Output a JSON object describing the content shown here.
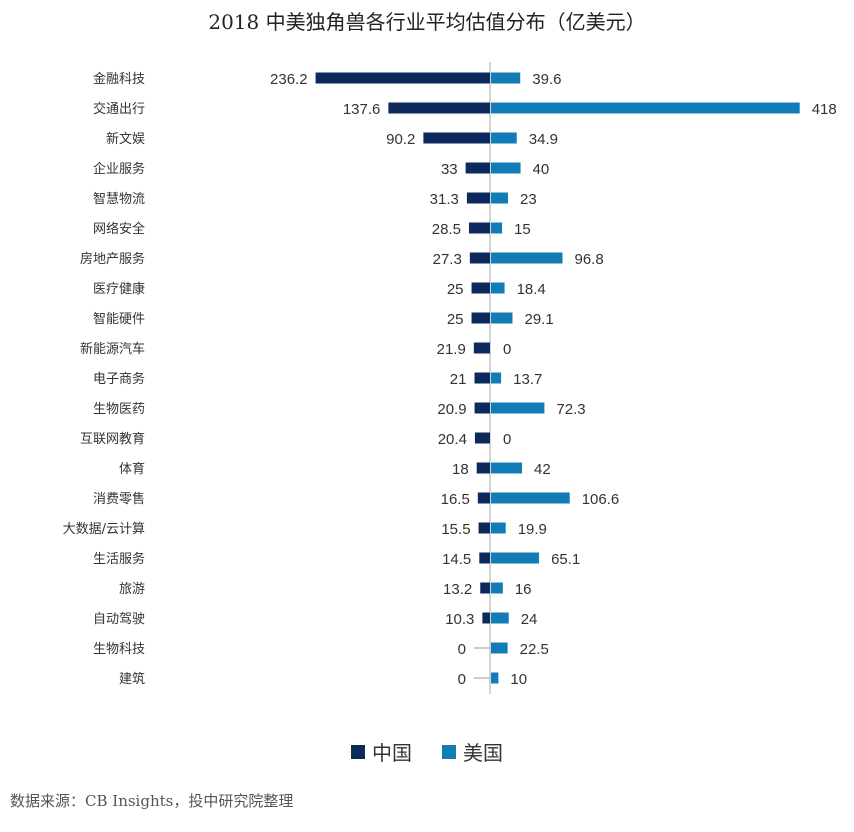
{
  "colors": {
    "china": "#0e2a5c",
    "usa": "#117cb6",
    "axis": "#b8b8b8",
    "zero_line": "#999999",
    "label_text": "#333333",
    "category_text": "#333333"
  },
  "chart_data": {
    "type": "bar",
    "orientation": "horizontal-diverging",
    "title": "2018 中美独角兽各行业平均估值分布（亿美元）",
    "categories": [
      "金融科技",
      "交通出行",
      "新文娱",
      "企业服务",
      "智慧物流",
      "网络安全",
      "房地产服务",
      "医疗健康",
      "智能硬件",
      "新能源汽车",
      "电子商务",
      "生物医药",
      "互联网教育",
      "体育",
      "消费零售",
      "大数据/云计算",
      "生活服务",
      "旅游",
      "自动驾驶",
      "生物科技",
      "建筑"
    ],
    "series": [
      {
        "name": "中国",
        "color": "#0e2a5c",
        "direction": "left",
        "values": [
          236.2,
          137.6,
          90.2,
          33,
          31.3,
          28.5,
          27.3,
          25,
          25,
          21.9,
          21,
          20.9,
          20.4,
          18,
          16.5,
          15.5,
          14.5,
          13.2,
          10.3,
          0,
          0
        ]
      },
      {
        "name": "美国",
        "color": "#117cb6",
        "direction": "right",
        "values": [
          39.6,
          418,
          34.9,
          40,
          23,
          15,
          96.8,
          18.4,
          29.1,
          0,
          13.7,
          72.3,
          0,
          42,
          106.6,
          19.9,
          65.1,
          16,
          24,
          22.5,
          10
        ]
      }
    ],
    "xlim": [
      -250,
      418
    ],
    "legend_position": "bottom-center",
    "grid": false
  },
  "source_note": "数据来源：CB Insights，投中研究院整理"
}
